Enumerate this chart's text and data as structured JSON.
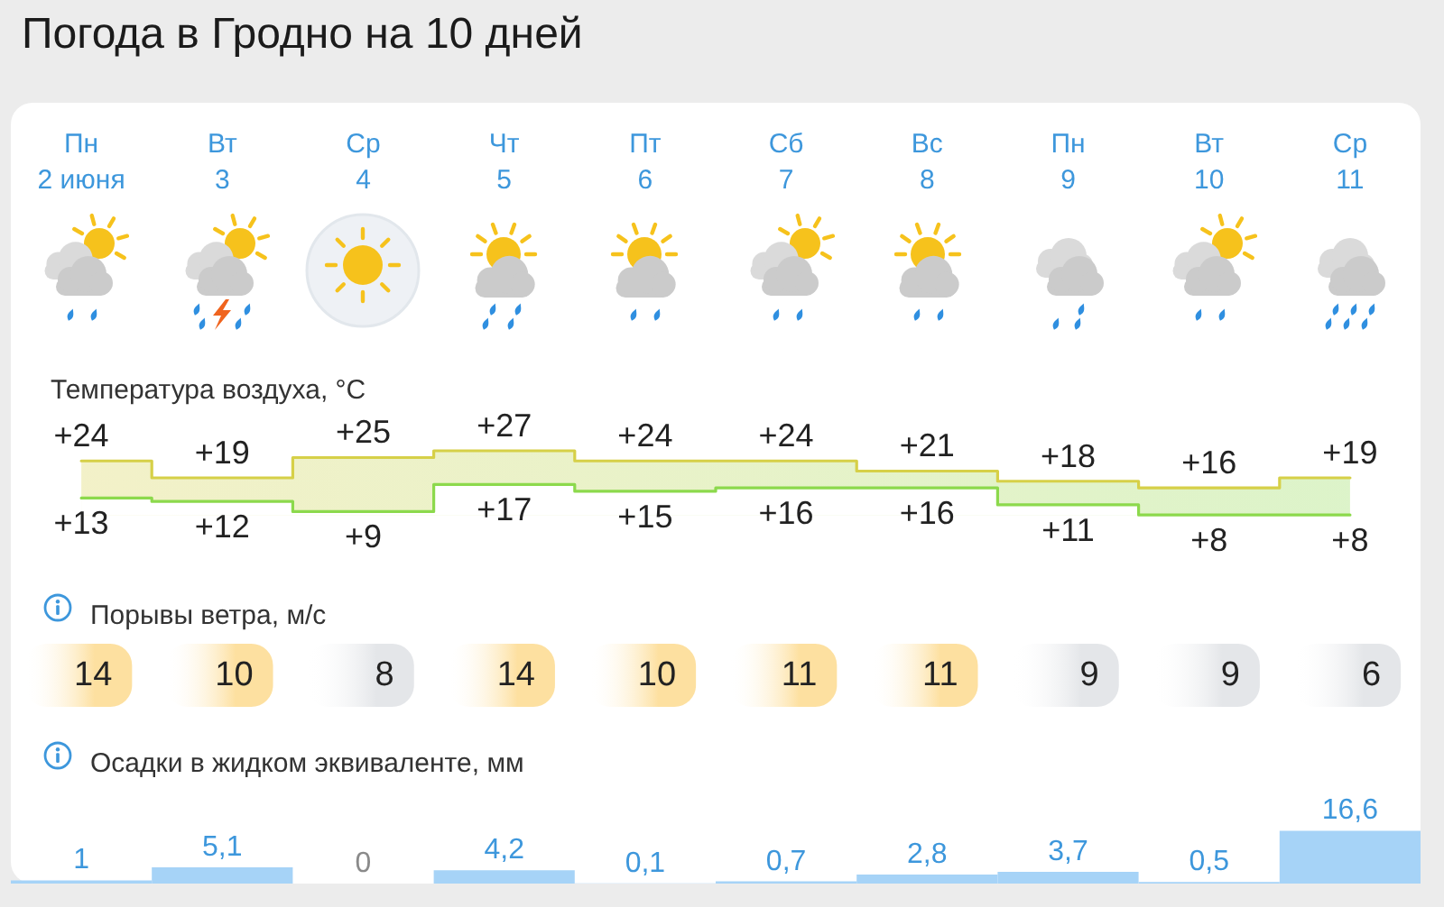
{
  "chart_data": [
    {
      "type": "step",
      "title": "Погода в Гродно на 10 дней",
      "subtitle": "Температура воздуха, °C",
      "categories": [
        "Пн\n2 июня",
        "Вт\n3",
        "Ср\n4",
        "Чт\n5",
        "Пт\n6",
        "Сб\n7",
        "Вс\n8",
        "Пн\n9",
        "Вт\n10",
        "Ср\n11"
      ],
      "tick_labels": "x",
      "marker": "none",
      "line_style": "solid",
      "series": [
        {
          "color": "#d6d048",
          "values": [
            24,
            19,
            25,
            27,
            24,
            24,
            21,
            18,
            16,
            19
          ],
          "value_labels": [
            "+24",
            "+19",
            "+25",
            "+27",
            "+24",
            "+24",
            "+21",
            "+18",
            "+16",
            "+19"
          ]
        },
        {
          "color": "#8cd94c",
          "values": [
            13,
            12,
            9,
            17,
            15,
            16,
            16,
            11,
            8,
            8
          ],
          "value_labels": [
            "+13",
            "+12",
            "+9",
            "+17",
            "+15",
            "+16",
            "+16",
            "+11",
            "+8",
            "+8"
          ]
        }
      ]
    },
    {
      "type": "other",
      "title": "Порывы ветра, м/с",
      "values": [
        14,
        10,
        8,
        14,
        10,
        11,
        11,
        9,
        9,
        6
      ],
      "colors": [
        "#fde0a0",
        "#fde0a0",
        "#e4e6e9",
        "#fde0a0",
        "#fde0a0",
        "#fde0a0",
        "#fde0a0",
        "#e4e6e9",
        "#e4e6e9",
        "#e4e6e9"
      ],
      "data_labels": true
    },
    {
      "type": "bar",
      "title": "Осадки в жидком эквиваленте, мм",
      "categories": [
        null,
        null,
        null,
        null,
        null,
        null,
        null,
        null,
        null,
        null
      ],
      "color": "#a6d3f7",
      "values": [
        1,
        5.1,
        0,
        4.2,
        0.1,
        0.7,
        2.8,
        3.7,
        0.5,
        16.6
      ],
      "value_labels": [
        "1",
        "5,1",
        "0",
        "4,2",
        "0,1",
        "0,7",
        "2,8",
        "3,7",
        "0,5",
        "16,6"
      ]
    }
  ]
}
